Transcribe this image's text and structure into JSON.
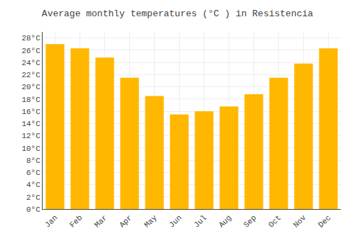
{
  "chart_data": {
    "type": "bar",
    "title": "Average monthly temperatures (°C ) in Resistencia",
    "categories": [
      "Jan",
      "Feb",
      "Mar",
      "Apr",
      "May",
      "Jun",
      "Jul",
      "Aug",
      "Sep",
      "Oct",
      "Nov",
      "Dec"
    ],
    "values": [
      27.0,
      26.3,
      24.8,
      21.5,
      18.5,
      15.5,
      16.0,
      16.8,
      18.8,
      21.5,
      23.8,
      26.3
    ],
    "color": "#FFB700",
    "ylim": [
      0,
      29
    ],
    "yticks": [
      {
        "value": 0,
        "label": "0°C"
      },
      {
        "value": 2,
        "label": "2°C"
      },
      {
        "value": 4,
        "label": "4°C"
      },
      {
        "value": 6,
        "label": "6°C"
      },
      {
        "value": 8,
        "label": "8°C"
      },
      {
        "value": 10,
        "label": "10°C"
      },
      {
        "value": 12,
        "label": "12°C"
      },
      {
        "value": 14,
        "label": "14°C"
      },
      {
        "value": 16,
        "label": "16°C"
      },
      {
        "value": 18,
        "label": "18°C"
      },
      {
        "value": 20,
        "label": "20°C"
      },
      {
        "value": 22,
        "label": "22°C"
      },
      {
        "value": 24,
        "label": "24°C"
      },
      {
        "value": 26,
        "label": "26°C"
      },
      {
        "value": 28,
        "label": "28°C"
      }
    ],
    "grid": true
  }
}
